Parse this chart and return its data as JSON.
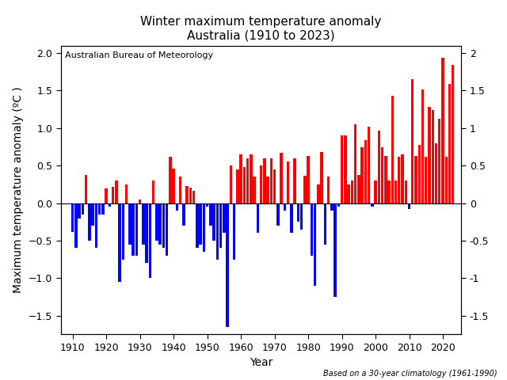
{
  "title_line1": "Winter maximum temperature anomaly",
  "title_line2": "Australia (1910 to 2023)",
  "xlabel": "Year",
  "ylabel": "Maximum temperature anomaly (ºC )",
  "annotation": "Australian Bureau of Meteorology",
  "footnote": "Based on a 30-year climatology (1961-1990)",
  "years": [
    1910,
    1911,
    1912,
    1913,
    1914,
    1915,
    1916,
    1917,
    1918,
    1919,
    1920,
    1921,
    1922,
    1923,
    1924,
    1925,
    1926,
    1927,
    1928,
    1929,
    1930,
    1931,
    1932,
    1933,
    1934,
    1935,
    1936,
    1937,
    1938,
    1939,
    1940,
    1941,
    1942,
    1943,
    1944,
    1945,
    1946,
    1947,
    1948,
    1949,
    1950,
    1951,
    1952,
    1953,
    1954,
    1955,
    1956,
    1957,
    1958,
    1959,
    1960,
    1961,
    1962,
    1963,
    1964,
    1965,
    1966,
    1967,
    1968,
    1969,
    1970,
    1971,
    1972,
    1973,
    1974,
    1975,
    1976,
    1977,
    1978,
    1979,
    1980,
    1981,
    1982,
    1983,
    1984,
    1985,
    1986,
    1987,
    1988,
    1989,
    1990,
    1991,
    1992,
    1993,
    1994,
    1995,
    1996,
    1997,
    1998,
    1999,
    2000,
    2001,
    2002,
    2003,
    2004,
    2005,
    2006,
    2007,
    2008,
    2009,
    2010,
    2011,
    2012,
    2013,
    2014,
    2015,
    2016,
    2017,
    2018,
    2019,
    2020,
    2021,
    2022,
    2023
  ],
  "values": [
    -0.38,
    -0.6,
    -0.2,
    -0.15,
    0.38,
    -0.5,
    -0.3,
    -0.6,
    -0.15,
    -0.15,
    0.2,
    -0.05,
    0.22,
    0.3,
    -1.05,
    -0.75,
    0.25,
    -0.55,
    -0.7,
    -0.7,
    0.05,
    -0.55,
    -0.8,
    -1.0,
    0.3,
    -0.5,
    -0.55,
    -0.6,
    -0.7,
    0.62,
    0.46,
    -0.1,
    0.35,
    -0.3,
    0.23,
    0.21,
    0.16,
    -0.6,
    -0.55,
    -0.65,
    -0.05,
    -0.3,
    -0.5,
    -0.75,
    -0.6,
    -0.4,
    -1.65,
    0.5,
    -0.75,
    0.45,
    0.65,
    0.48,
    0.6,
    0.65,
    0.35,
    -0.4,
    0.5,
    0.6,
    0.35,
    0.6,
    0.45,
    -0.3,
    0.67,
    -0.1,
    0.55,
    -0.4,
    0.6,
    -0.25,
    -0.35,
    0.36,
    0.63,
    -0.7,
    -1.1,
    0.25,
    0.68,
    -0.55,
    0.35,
    -0.1,
    -1.25,
    -0.05,
    0.9,
    0.9,
    0.25,
    0.3,
    1.05,
    0.38,
    0.75,
    0.84,
    1.02,
    -0.05,
    0.3,
    0.97,
    0.75,
    0.63,
    0.3,
    1.43,
    0.3,
    0.62,
    0.65,
    0.3,
    -0.08,
    1.65,
    0.63,
    0.78,
    1.52,
    0.62,
    1.28,
    1.24,
    0.8,
    1.13,
    1.94,
    0.62,
    1.59,
    1.84
  ],
  "ylim": [
    -1.75,
    2.1
  ],
  "yticks": [
    -1.5,
    -1.0,
    -0.5,
    0.0,
    0.5,
    1.0,
    1.5,
    2.0
  ],
  "xticks": [
    1910,
    1920,
    1930,
    1940,
    1950,
    1960,
    1970,
    1980,
    1990,
    2000,
    2010,
    2020
  ],
  "xlim": [
    1906.5,
    2025.5
  ],
  "color_positive": "#FF0000",
  "color_negative": "#0000FF",
  "bg_color": "#FFFFFF",
  "bar_width": 0.8,
  "title_fontsize": 11,
  "label_fontsize": 10,
  "tick_fontsize": 9,
  "annot_fontsize": 8,
  "footnote_fontsize": 7
}
